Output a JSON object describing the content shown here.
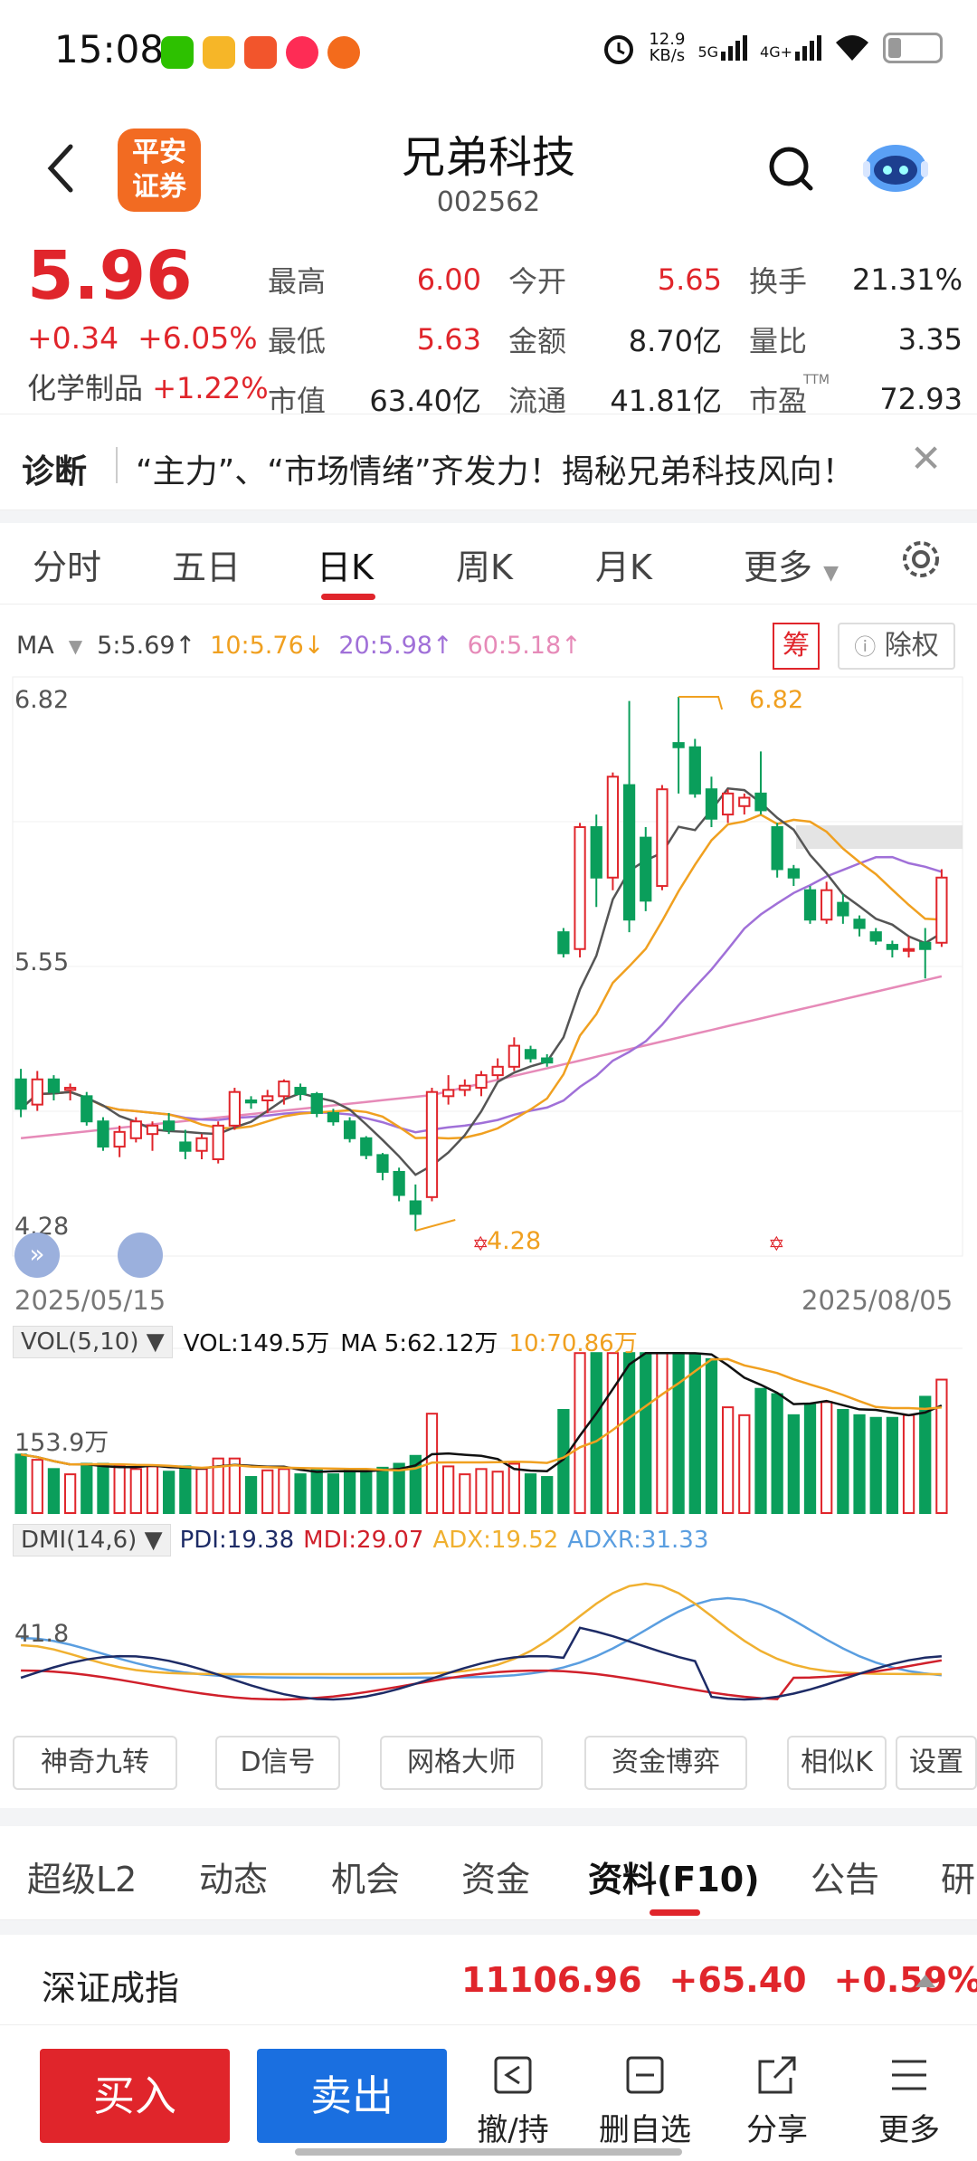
{
  "status": {
    "time": "15:08",
    "net_speed": "12.9",
    "net_unit": "KB/s",
    "sig1": "5G",
    "sig2": "4G+"
  },
  "header": {
    "title": "兄弟科技",
    "code": "002562",
    "logo_line1": "平安",
    "logo_line2": "证券"
  },
  "quote": {
    "price": "5.96",
    "change": "+0.34",
    "change_pct": "+6.05%",
    "sector_name": "化学制品",
    "sector_pct": "+1.22%",
    "high_label": "最高",
    "high": "6.00",
    "low_label": "最低",
    "low": "5.63",
    "mcap_label": "市值",
    "mcap": "63.40亿",
    "open_label": "今开",
    "open": "5.65",
    "amount_label": "金额",
    "amount": "8.70亿",
    "float_label": "流通",
    "float": "41.81亿",
    "turnover_label": "换手",
    "turnover": "21.31%",
    "vr_label": "量比",
    "vr": "3.35",
    "pe_label": "市盈",
    "pe_sup": "TTM",
    "pe": "72.93"
  },
  "diagnosis": {
    "label": "诊断",
    "text": "“主力”、“市场情绪”齐发力！揭秘兄弟科技风向！"
  },
  "chart_tabs": [
    "分时",
    "五日",
    "日K",
    "周K",
    "月K",
    "更多"
  ],
  "ma_line": {
    "label": "MA",
    "ma5": "5:5.69↑",
    "ma10": "10:5.76↓",
    "ma20": "20:5.98↑",
    "ma60": "60:5.18↑"
  },
  "chart_buttons": {
    "chou": "筹",
    "chuquan": "除权"
  },
  "chart_labels": {
    "y_top": "6.82",
    "y_mid": "5.55",
    "y_low": "4.28",
    "max_tag": "6.82",
    "min_tag": "4.28",
    "date_start": "2025/05/15",
    "date_end": "2025/08/05"
  },
  "colors": {
    "up": "#e0252b",
    "down": "#0a9e5b",
    "ma5": "#555555",
    "ma10": "#f0a020",
    "ma20": "#a070d8",
    "ma60": "#e68ab8"
  },
  "chart_data": {
    "type": "candlestick",
    "dates_shown": [
      "2025/05/15",
      "2025/08/05"
    ],
    "ylim": [
      4.28,
      6.82
    ],
    "candles": [
      {
        "o": 5.0,
        "h": 5.05,
        "l": 4.82,
        "c": 4.86
      },
      {
        "o": 4.88,
        "h": 5.04,
        "l": 4.85,
        "c": 5.0
      },
      {
        "o": 5.0,
        "h": 5.02,
        "l": 4.9,
        "c": 4.94
      },
      {
        "o": 4.95,
        "h": 4.98,
        "l": 4.9,
        "c": 4.96
      },
      {
        "o": 4.92,
        "h": 4.94,
        "l": 4.78,
        "c": 4.8
      },
      {
        "o": 4.8,
        "h": 4.82,
        "l": 4.66,
        "c": 4.68
      },
      {
        "o": 4.68,
        "h": 4.78,
        "l": 4.63,
        "c": 4.75
      },
      {
        "o": 4.72,
        "h": 4.82,
        "l": 4.7,
        "c": 4.8
      },
      {
        "o": 4.74,
        "h": 4.8,
        "l": 4.66,
        "c": 4.78
      },
      {
        "o": 4.8,
        "h": 4.84,
        "l": 4.74,
        "c": 4.76
      },
      {
        "o": 4.7,
        "h": 4.76,
        "l": 4.62,
        "c": 4.66
      },
      {
        "o": 4.66,
        "h": 4.74,
        "l": 4.62,
        "c": 4.72
      },
      {
        "o": 4.62,
        "h": 4.8,
        "l": 4.6,
        "c": 4.78
      },
      {
        "o": 4.78,
        "h": 4.96,
        "l": 4.76,
        "c": 4.94
      },
      {
        "o": 4.9,
        "h": 4.92,
        "l": 4.86,
        "c": 4.89
      },
      {
        "o": 4.9,
        "h": 4.95,
        "l": 4.84,
        "c": 4.92
      },
      {
        "o": 4.92,
        "h": 5.0,
        "l": 4.88,
        "c": 4.99
      },
      {
        "o": 4.96,
        "h": 4.98,
        "l": 4.9,
        "c": 4.93
      },
      {
        "o": 4.93,
        "h": 4.94,
        "l": 4.82,
        "c": 4.84
      },
      {
        "o": 4.84,
        "h": 4.86,
        "l": 4.78,
        "c": 4.8
      },
      {
        "o": 4.8,
        "h": 4.82,
        "l": 4.7,
        "c": 4.72
      },
      {
        "o": 4.72,
        "h": 4.73,
        "l": 4.62,
        "c": 4.64
      },
      {
        "o": 4.64,
        "h": 4.65,
        "l": 4.52,
        "c": 4.56
      },
      {
        "o": 4.56,
        "h": 4.58,
        "l": 4.42,
        "c": 4.45
      },
      {
        "o": 4.42,
        "h": 4.5,
        "l": 4.28,
        "c": 4.36
      },
      {
        "o": 4.44,
        "h": 4.96,
        "l": 4.42,
        "c": 4.94
      },
      {
        "o": 4.92,
        "h": 5.02,
        "l": 4.88,
        "c": 4.95
      },
      {
        "o": 4.95,
        "h": 5.0,
        "l": 4.92,
        "c": 4.97
      },
      {
        "o": 4.96,
        "h": 5.04,
        "l": 4.92,
        "c": 5.02
      },
      {
        "o": 5.02,
        "h": 5.1,
        "l": 5.0,
        "c": 5.06
      },
      {
        "o": 5.06,
        "h": 5.2,
        "l": 5.04,
        "c": 5.16
      },
      {
        "o": 5.14,
        "h": 5.16,
        "l": 5.08,
        "c": 5.1
      },
      {
        "o": 5.1,
        "h": 5.12,
        "l": 5.06,
        "c": 5.08
      },
      {
        "o": 5.7,
        "h": 5.72,
        "l": 5.58,
        "c": 5.6
      },
      {
        "o": 5.62,
        "h": 6.22,
        "l": 5.58,
        "c": 6.2
      },
      {
        "o": 6.2,
        "h": 6.26,
        "l": 5.82,
        "c": 5.96
      },
      {
        "o": 5.96,
        "h": 6.46,
        "l": 5.9,
        "c": 6.44
      },
      {
        "o": 6.4,
        "h": 6.8,
        "l": 5.7,
        "c": 5.76
      },
      {
        "o": 6.15,
        "h": 6.2,
        "l": 5.8,
        "c": 5.85
      },
      {
        "o": 5.92,
        "h": 6.4,
        "l": 5.9,
        "c": 6.38
      },
      {
        "o": 6.6,
        "h": 6.82,
        "l": 6.36,
        "c": 6.58
      },
      {
        "o": 6.58,
        "h": 6.62,
        "l": 6.34,
        "c": 6.36
      },
      {
        "o": 6.38,
        "h": 6.44,
        "l": 6.2,
        "c": 6.24
      },
      {
        "o": 6.26,
        "h": 6.38,
        "l": 6.22,
        "c": 6.36
      },
      {
        "o": 6.3,
        "h": 6.36,
        "l": 6.26,
        "c": 6.34
      },
      {
        "o": 6.36,
        "h": 6.56,
        "l": 6.26,
        "c": 6.28
      },
      {
        "o": 6.2,
        "h": 6.22,
        "l": 5.96,
        "c": 6.0
      },
      {
        "o": 6.0,
        "h": 6.02,
        "l": 5.92,
        "c": 5.96
      },
      {
        "o": 5.9,
        "h": 5.92,
        "l": 5.74,
        "c": 5.76
      },
      {
        "o": 5.76,
        "h": 5.94,
        "l": 5.74,
        "c": 5.9
      },
      {
        "o": 5.84,
        "h": 5.88,
        "l": 5.74,
        "c": 5.78
      },
      {
        "o": 5.76,
        "h": 5.78,
        "l": 5.68,
        "c": 5.72
      },
      {
        "o": 5.7,
        "h": 5.72,
        "l": 5.64,
        "c": 5.66
      },
      {
        "o": 5.64,
        "h": 5.66,
        "l": 5.58,
        "c": 5.62
      },
      {
        "o": 5.62,
        "h": 5.68,
        "l": 5.58,
        "c": 5.62
      },
      {
        "o": 5.65,
        "h": 5.72,
        "l": 5.48,
        "c": 5.62
      },
      {
        "o": 5.65,
        "h": 6.0,
        "l": 5.63,
        "c": 5.96
      }
    ],
    "volume_label": "VOL(5,10)",
    "vol_text": "VOL:149.5万",
    "vol_ma5": "MA 5:62.12万",
    "vol_ma10": "10:70.86万",
    "vol_axis": "153.9万",
    "dmi_label": "DMI(14,6)",
    "pdi": "PDI:19.38",
    "mdi": "MDI:29.07",
    "adx": "ADX:19.52",
    "adxr": "ADXR:31.33",
    "dmi_axis": "41.8"
  },
  "tools": [
    "神奇九转",
    "D信号",
    "网格大师",
    "资金博弈",
    "相似K",
    "设置"
  ],
  "bottom_tabs": [
    "超级L2",
    "动态",
    "机会",
    "资金",
    "资料(F10)",
    "公告",
    "研"
  ],
  "index": {
    "name": "深证成指",
    "value": "11106.96",
    "change": "+65.40",
    "pct": "+0.59%"
  },
  "bottom_bar": {
    "buy": "买入",
    "sell": "卖出",
    "cancel": "撤/持",
    "delete_fav": "删自选",
    "share": "分享",
    "more": "更多"
  }
}
